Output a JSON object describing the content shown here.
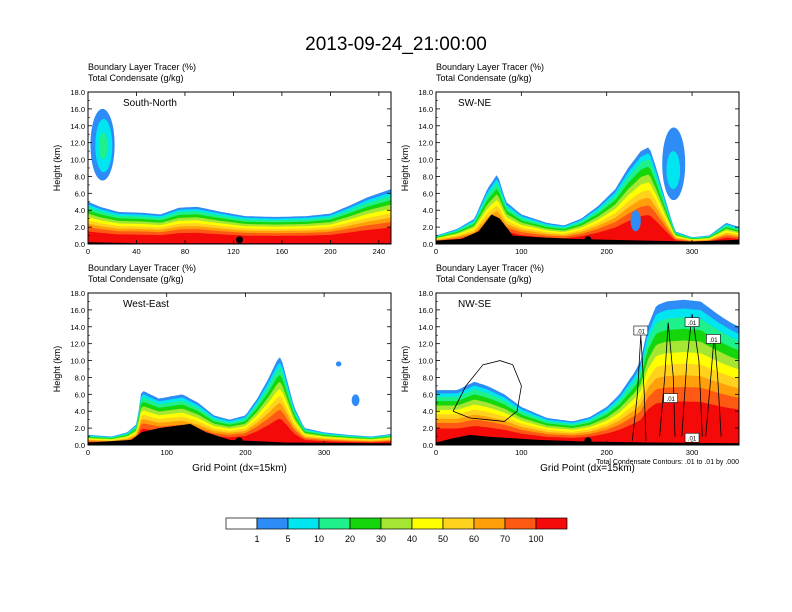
{
  "title": "2013-09-24_21:00:00",
  "colors": {
    "bins": [
      "#ffffff",
      "#2d8cf5",
      "#00e6f0",
      "#1ef08c",
      "#14d60a",
      "#a4e632",
      "#ffff00",
      "#ffd21e",
      "#ffa00a",
      "#ff5a14",
      "#f50a0a"
    ],
    "contour": "#000000",
    "terrain": "#000000",
    "marker": "#000000"
  },
  "chart_data": [
    {
      "type": "heatmap",
      "label": "South-North",
      "subtitle_line1": "Boundary Layer Tracer    (%)",
      "subtitle_line2": "Total Condensate    (g/kg)",
      "ylabel": "Height (km)",
      "xlabel": "",
      "xlim": [
        0,
        250
      ],
      "ylim": [
        0,
        18
      ],
      "xticks": [
        "0",
        "40",
        "80",
        "120",
        "160",
        "200",
        "240"
      ],
      "xtick_values": [
        0,
        40,
        80,
        120,
        160,
        200,
        240
      ],
      "yticks": [
        "0.0",
        "2.0",
        "4.0",
        "6.0",
        "8.0",
        "10.0",
        "12.0",
        "14.0",
        "16.0",
        "18.0"
      ],
      "marker_x": 125,
      "layer_top": [
        [
          0,
          5.0
        ],
        [
          10,
          4.4
        ],
        [
          25,
          3.8
        ],
        [
          45,
          3.7
        ],
        [
          60,
          3.5
        ],
        [
          75,
          4.3
        ],
        [
          90,
          4.4
        ],
        [
          110,
          3.8
        ],
        [
          130,
          3.3
        ],
        [
          155,
          3.2
        ],
        [
          180,
          3.3
        ],
        [
          200,
          3.6
        ],
        [
          215,
          4.5
        ],
        [
          230,
          5.5
        ],
        [
          250,
          6.5
        ]
      ],
      "aloft": [
        {
          "x0": 2,
          "x1": 22,
          "y0": 7.5,
          "y1": 16.0,
          "v": 1
        },
        {
          "x0": 6,
          "x1": 20,
          "y0": 8.5,
          "y1": 14.8,
          "v": 2
        },
        {
          "x0": 9,
          "x1": 16,
          "y0": 10.0,
          "y1": 13.2,
          "v": 3
        }
      ],
      "contours": [],
      "terrain": [
        [
          0,
          0.2
        ],
        [
          40,
          0.1
        ],
        [
          80,
          0.1
        ],
        [
          125,
          0.1
        ],
        [
          180,
          0.1
        ],
        [
          250,
          0.1
        ]
      ]
    },
    {
      "type": "heatmap",
      "label": "SW-NE",
      "subtitle_line1": "Boundary Layer Tracer    (%)",
      "subtitle_line2": "Total Condensate    (g/kg)",
      "ylabel": "Height (km)",
      "xlabel": "",
      "xlim": [
        0,
        355
      ],
      "ylim": [
        0,
        18
      ],
      "xticks": [
        "0",
        "100",
        "200",
        "300"
      ],
      "xtick_values": [
        0,
        100,
        200,
        300
      ],
      "yticks": [
        "0.0",
        "2.0",
        "4.0",
        "6.0",
        "8.0",
        "10.0",
        "12.0",
        "14.0",
        "16.0",
        "18.0"
      ],
      "marker_x": 178,
      "layer_top": [
        [
          0,
          1.0
        ],
        [
          25,
          1.8
        ],
        [
          45,
          3.0
        ],
        [
          60,
          6.5
        ],
        [
          72,
          8.3
        ],
        [
          82,
          5.0
        ],
        [
          100,
          3.5
        ],
        [
          130,
          2.5
        ],
        [
          150,
          2.2
        ],
        [
          170,
          3.0
        ],
        [
          190,
          4.5
        ],
        [
          210,
          6.5
        ],
        [
          225,
          9.0
        ],
        [
          240,
          11.0
        ],
        [
          250,
          11.5
        ],
        [
          258,
          9.0
        ],
        [
          268,
          5.5
        ],
        [
          280,
          1.5
        ],
        [
          300,
          0.8
        ],
        [
          320,
          1.0
        ],
        [
          340,
          2.5
        ],
        [
          355,
          2.0
        ]
      ],
      "aloft": [
        {
          "x0": 265,
          "x1": 292,
          "y0": 5.2,
          "y1": 13.8,
          "v": 1
        },
        {
          "x0": 270,
          "x1": 286,
          "y0": 6.5,
          "y1": 11.0,
          "v": 2
        },
        {
          "x0": 228,
          "x1": 240,
          "y0": 1.5,
          "y1": 4.0,
          "v": 1
        }
      ],
      "contours": [],
      "terrain": [
        [
          0,
          0.4
        ],
        [
          30,
          0.6
        ],
        [
          50,
          1.5
        ],
        [
          65,
          3.5
        ],
        [
          75,
          3.0
        ],
        [
          90,
          1.0
        ],
        [
          120,
          0.8
        ],
        [
          160,
          0.6
        ],
        [
          200,
          0.5
        ],
        [
          300,
          0.3
        ],
        [
          355,
          0.5
        ]
      ]
    },
    {
      "type": "heatmap",
      "label": "West-East",
      "subtitle_line1": "Boundary Layer Tracer    (%)",
      "subtitle_line2": "Total Condensate    (g/kg)",
      "ylabel": "Height (km)",
      "xlabel": "Grid Point (dx=15km)",
      "xlim": [
        0,
        385
      ],
      "ylim": [
        0,
        18
      ],
      "xticks": [
        "0",
        "100",
        "200",
        "300"
      ],
      "xtick_values": [
        0,
        100,
        200,
        300
      ],
      "yticks": [
        "0.0",
        "2.0",
        "4.0",
        "6.0",
        "8.0",
        "10.0",
        "12.0",
        "14.0",
        "16.0",
        "18.0"
      ],
      "marker_x": 192,
      "layer_top": [
        [
          0,
          1.2
        ],
        [
          30,
          1.0
        ],
        [
          50,
          1.5
        ],
        [
          62,
          2.5
        ],
        [
          68,
          6.5
        ],
        [
          90,
          5.5
        ],
        [
          120,
          6.0
        ],
        [
          140,
          5.0
        ],
        [
          160,
          3.5
        ],
        [
          180,
          3.0
        ],
        [
          200,
          3.5
        ],
        [
          215,
          5.5
        ],
        [
          230,
          8.0
        ],
        [
          240,
          10.0
        ],
        [
          245,
          10.5
        ],
        [
          252,
          8.0
        ],
        [
          262,
          4.5
        ],
        [
          275,
          2.0
        ],
        [
          300,
          1.5
        ],
        [
          330,
          1.2
        ],
        [
          360,
          1.0
        ],
        [
          385,
          1.3
        ]
      ],
      "aloft": [
        {
          "x0": 335,
          "x1": 345,
          "y0": 4.6,
          "y1": 6.0,
          "v": 1
        },
        {
          "x0": 315,
          "x1": 322,
          "y0": 9.3,
          "y1": 9.9,
          "v": 1
        }
      ],
      "contours": [],
      "terrain": [
        [
          0,
          0.3
        ],
        [
          55,
          0.6
        ],
        [
          68,
          1.5
        ],
        [
          90,
          2.0
        ],
        [
          130,
          2.5
        ],
        [
          150,
          1.5
        ],
        [
          180,
          0.6
        ],
        [
          250,
          0.3
        ],
        [
          385,
          0.2
        ]
      ]
    },
    {
      "type": "heatmap",
      "label": "NW-SE",
      "subtitle_line1": "Boundary Layer Tracer    (%)",
      "subtitle_line2": "Total Condensate    (g/kg)",
      "ylabel": "Height (km)",
      "xlabel": "Grid Point (dx=15km)",
      "xlim": [
        0,
        355
      ],
      "ylim": [
        0,
        18
      ],
      "xticks": [
        "0",
        "100",
        "200",
        "300"
      ],
      "xtick_values": [
        0,
        100,
        200,
        300
      ],
      "yticks": [
        "0.0",
        "2.0",
        "4.0",
        "6.0",
        "8.0",
        "10.0",
        "12.0",
        "14.0",
        "16.0",
        "18.0"
      ],
      "marker_x": 178,
      "layer_top": [
        [
          0,
          6.5
        ],
        [
          25,
          6.5
        ],
        [
          45,
          7.5
        ],
        [
          60,
          7.0
        ],
        [
          80,
          6.0
        ],
        [
          100,
          4.5
        ],
        [
          130,
          3.2
        ],
        [
          160,
          2.8
        ],
        [
          180,
          3.3
        ],
        [
          200,
          4.5
        ],
        [
          215,
          6.0
        ],
        [
          225,
          7.5
        ],
        [
          232,
          8.5
        ],
        [
          240,
          10.0
        ],
        [
          248,
          14.0
        ],
        [
          258,
          16.5
        ],
        [
          270,
          17.0
        ],
        [
          290,
          17.2
        ],
        [
          310,
          17.0
        ],
        [
          330,
          15.5
        ],
        [
          345,
          14.5
        ],
        [
          355,
          14.0
        ]
      ],
      "aloft": [],
      "contours": [
        [
          [
            20,
            4.0
          ],
          [
            35,
            7.0
          ],
          [
            55,
            9.5
          ],
          [
            75,
            10.0
          ],
          [
            90,
            9.5
          ],
          [
            100,
            7.0
          ],
          [
            95,
            4.0
          ],
          [
            80,
            2.8
          ],
          [
            60,
            3.0
          ],
          [
            40,
            3.2
          ],
          [
            20,
            4.0
          ]
        ],
        [
          [
            230,
            0.5
          ],
          [
            236,
            6.0
          ],
          [
            240,
            13.0
          ],
          [
            244,
            6.0
          ],
          [
            246,
            0.5
          ]
        ],
        [
          [
            262,
            1.0
          ],
          [
            268,
            8.0
          ],
          [
            272,
            14.5
          ],
          [
            278,
            8.0
          ],
          [
            280,
            1.0
          ]
        ],
        [
          [
            288,
            1.0
          ],
          [
            294,
            10.0
          ],
          [
            300,
            15.5
          ],
          [
            308,
            10.0
          ],
          [
            312,
            1.0
          ]
        ],
        [
          [
            316,
            1.0
          ],
          [
            322,
            8.0
          ],
          [
            326,
            13.0
          ],
          [
            330,
            8.0
          ],
          [
            334,
            1.0
          ]
        ]
      ],
      "contour_labels": [
        {
          "x": 240,
          "y": 13.5,
          "text": ".01"
        },
        {
          "x": 275,
          "y": 5.5,
          "text": ".01"
        },
        {
          "x": 300,
          "y": 14.5,
          "text": ".01"
        },
        {
          "x": 325,
          "y": 12.5,
          "text": ".01"
        },
        {
          "x": 300,
          "y": 0.8,
          "text": ".01"
        }
      ],
      "terrain": [
        [
          0,
          0.3
        ],
        [
          20,
          0.8
        ],
        [
          40,
          1.2
        ],
        [
          60,
          1.0
        ],
        [
          90,
          0.8
        ],
        [
          120,
          0.6
        ],
        [
          180,
          0.4
        ],
        [
          250,
          0.3
        ],
        [
          355,
          0.2
        ]
      ],
      "note": "Total Condensate Contours: .01 to .01 by .000"
    }
  ],
  "colorbar": {
    "labels": [
      "1",
      "5",
      "10",
      "20",
      "30",
      "40",
      "50",
      "60",
      "70",
      "100"
    ]
  }
}
